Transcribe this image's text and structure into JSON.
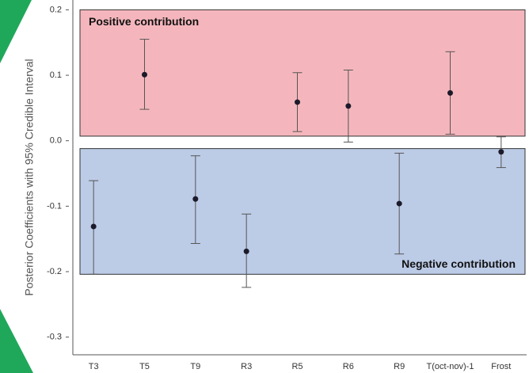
{
  "chart_data": {
    "type": "errorbar",
    "y_label": "Posterior Coefficients with 95% Credible Interval",
    "categories": [
      "T3",
      "T5",
      "T9",
      "R3",
      "R5",
      "R6",
      "R9",
      "T(oct-nov)-1",
      "Frost"
    ],
    "series": [
      {
        "color": "#1c1a2a",
        "values": [
          -0.131,
          0.101,
          -0.089,
          -0.169,
          0.059,
          0.053,
          -0.096,
          0.073,
          -0.017
        ],
        "upper": [
          -0.061,
          0.155,
          -0.023,
          -0.112,
          0.104,
          0.108,
          -0.019,
          0.136,
          0.006
        ],
        "lower": [
          -0.204,
          0.048,
          -0.157,
          -0.224,
          0.014,
          -0.002,
          -0.173,
          0.01,
          -0.041
        ]
      }
    ],
    "regions": [
      {
        "label": "Positive contribution",
        "from": 0.007,
        "to": 0.2,
        "color": "#f4b6bc"
      },
      {
        "label": "Negative contribution",
        "from": -0.204,
        "to": -0.012,
        "color": "#bccbe6"
      }
    ],
    "ylim": [
      -0.327,
      0.215
    ],
    "yticks": [
      0.2,
      0.1,
      {
        "value": 0,
        "label": "0.0"
      },
      -0.1,
      -0.2,
      -0.3
    ]
  }
}
